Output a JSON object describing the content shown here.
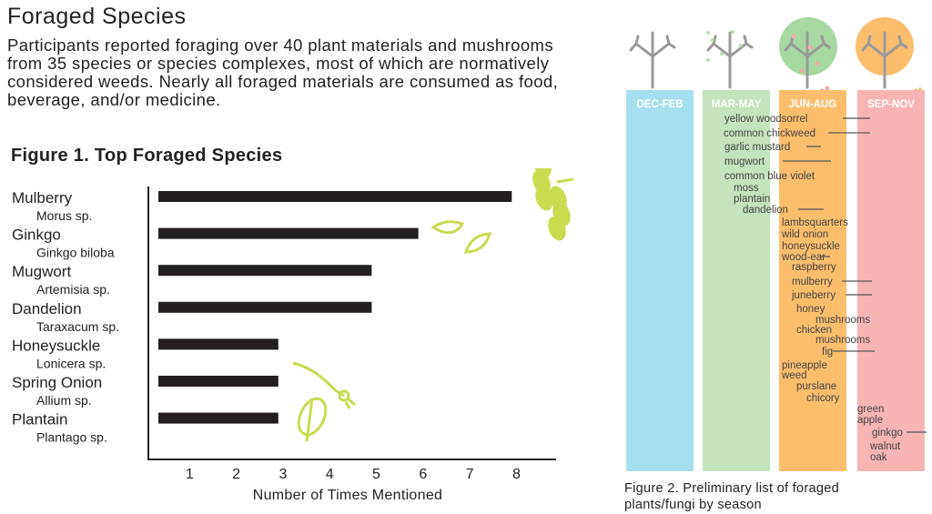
{
  "title": "Foraged Species",
  "intro": "Participants reported foraging over 40 plant materials and mushrooms from 35 species or species complexes, most of which are normatively considered weeds.  Nearly all foraged materials are consumed as food, beverage, and/or medicine.",
  "figure1": {
    "title": "Figure 1. Top Foraged Species"
  },
  "figure2": {
    "caption": "Figure 2. Preliminary list of foraged plants/fungi by season"
  },
  "colors": {
    "bar": "#231f20",
    "accent": "#c9db4f",
    "winter": "#a6dff0",
    "spring": "#c4e4bb",
    "summer": "#fcbe6c",
    "autumn": "#f6b5b3",
    "tree": "#9a9a9a"
  },
  "chart_data": [
    {
      "type": "bar",
      "orientation": "horizontal",
      "title": "Figure 1. Top Foraged Species",
      "xlabel": "Number of Times Mentioned",
      "ylabel": "",
      "xlim": [
        0,
        8.2
      ],
      "xticks": [
        1,
        2,
        3,
        4,
        5,
        6,
        7,
        8
      ],
      "categories": [
        "Mulberry",
        "Ginkgo",
        "Mugwort",
        "Dandelion",
        "Honeysuckle",
        "Spring Onion",
        "Plantain"
      ],
      "subtitles": [
        "Morus sp.",
        "Ginkgo biloba",
        "Artemisia sp.",
        "Taraxacum sp.",
        "Lonicera sp.",
        "Allium sp.",
        "Plantago sp."
      ],
      "values": [
        7.9,
        5.9,
        4.9,
        4.9,
        2.9,
        2.9,
        2.9
      ],
      "grid": false
    },
    {
      "type": "table",
      "title": "",
      "seasons": [
        "DEC-FEB",
        "MAR-MAY",
        "JUN-AUG",
        "SEP-NOV"
      ],
      "items": [
        {
          "label": "yellow woodsorrel",
          "start": 1,
          "end": 2
        },
        {
          "label": "common chickweed",
          "start": 1,
          "end": 2
        },
        {
          "label": "garlic mustard",
          "start": 1,
          "end": 1
        },
        {
          "label": "mugwort",
          "start": 1,
          "end": 2
        },
        {
          "label": "common blue violet",
          "start": 1,
          "end": 1
        },
        {
          "label": "moss",
          "start": 1,
          "end": 1
        },
        {
          "label": "plantain",
          "start": 1,
          "end": 1
        },
        {
          "label": "dandelion",
          "start": 1,
          "end": 2
        },
        {
          "label": "lambsquarters",
          "start": 2,
          "end": 2
        },
        {
          "label": "wild onion",
          "start": 2,
          "end": 2
        },
        {
          "label": "honeysuckle",
          "start": 2,
          "end": 2
        },
        {
          "label": "wood-ear",
          "start": 2,
          "end": 2
        },
        {
          "label": "raspberry",
          "start": 2,
          "end": 2
        },
        {
          "label": "mulberry",
          "start": 2,
          "end": 3
        },
        {
          "label": "juneberry",
          "start": 2,
          "end": 3
        },
        {
          "label": "honey mushrooms",
          "start": 2,
          "end": 3
        },
        {
          "label": "chicken mushrooms",
          "start": 2,
          "end": 3
        },
        {
          "label": "fig",
          "start": 2,
          "end": 3
        },
        {
          "label": "pineapple weed",
          "start": 2,
          "end": 2
        },
        {
          "label": "purslane",
          "start": 2,
          "end": 2
        },
        {
          "label": "chicory",
          "start": 2,
          "end": 2
        },
        {
          "label": "green apple",
          "start": 3,
          "end": 3
        },
        {
          "label": "ginkgo",
          "start": 3,
          "end": 3
        },
        {
          "label": "walnut",
          "start": 3,
          "end": 3
        },
        {
          "label": "oak",
          "start": 3,
          "end": 3
        }
      ]
    }
  ]
}
